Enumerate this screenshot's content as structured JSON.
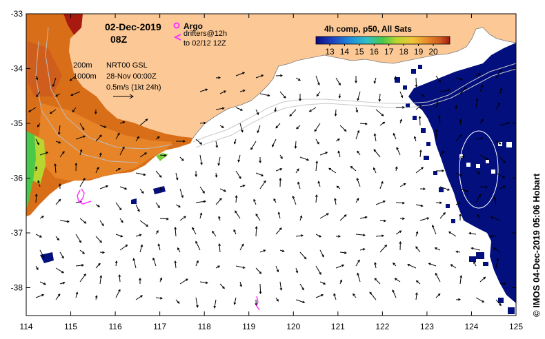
{
  "header": {
    "date": "02-Dec-2019",
    "hour": "08Z",
    "argo_label": "Argo",
    "drifters_label": "drifters@12h",
    "drifters_range": "to 02/12 12Z"
  },
  "contours": {
    "isobath_200": "200m",
    "isobath_1000": "1000m"
  },
  "currents": {
    "product": "NRT00 GSL",
    "date": "28-Nov 00:00Z",
    "scale": "0.5m/s (1kt 24h)"
  },
  "colorbar": {
    "title": "4h comp, p50, All Sats",
    "ticks": [
      "13",
      "14",
      "15",
      "16",
      "17",
      "18",
      "19",
      "20"
    ],
    "colors": [
      "#0a0a80",
      "#1f3fbf",
      "#1f8fd8",
      "#2fc0c8",
      "#49c84a",
      "#b8d630",
      "#f0c63a",
      "#e8862a",
      "#cc5a1e",
      "#a81a10"
    ]
  },
  "axes": {
    "x_ticks": [
      "114",
      "115",
      "116",
      "117",
      "118",
      "119",
      "120",
      "121",
      "122",
      "123",
      "124",
      "125"
    ],
    "y_ticks": [
      "-33",
      "-34",
      "-35",
      "-36",
      "-37",
      "-38"
    ]
  },
  "credit": "© IMOS 04-Dec-2019 05:06 Hobart",
  "colors": {
    "land": "#fbc896",
    "deep_water": "#020f7d",
    "argo": "#ff33ff",
    "drifter": "#ff33ff"
  }
}
